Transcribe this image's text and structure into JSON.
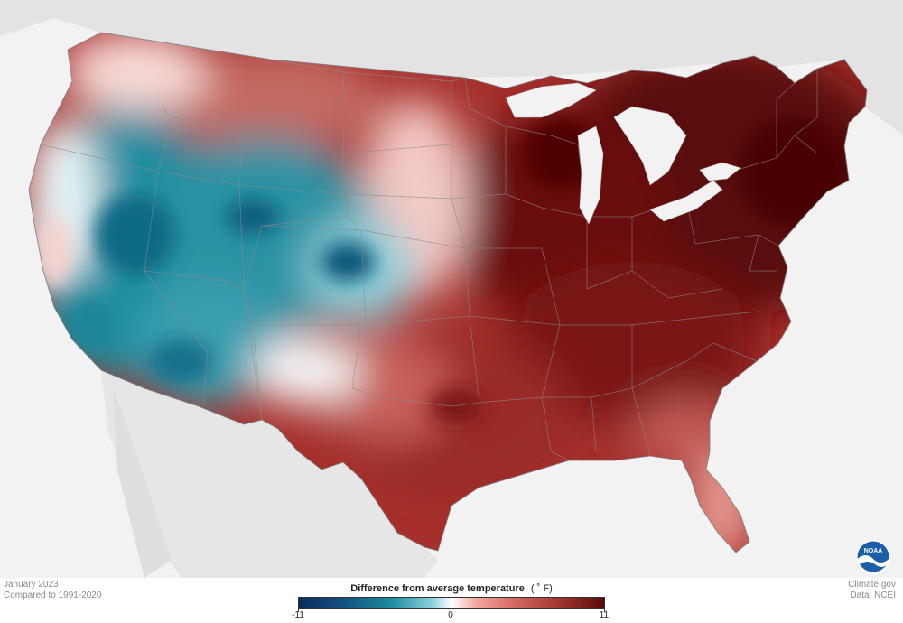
{
  "map": {
    "region": "Contiguous United States",
    "variable": "Difference from average temperature",
    "pattern": [
      {
        "area": "West (CA, NV, AZ, UT, CO, ID, OR, WY)",
        "anomaly": "cooler than average"
      },
      {
        "area": "Central and East",
        "anomaly": "warmer than average"
      },
      {
        "area": "Northeast and Great Lakes",
        "anomaly": "much warmer than average"
      }
    ]
  },
  "legend": {
    "title": "Difference from average temperature",
    "unit": "( ˚ F)",
    "min_label": "-11",
    "mid_label": "0",
    "max_label": "11",
    "scale_min": -11,
    "scale_max": 11,
    "colors": {
      "min": "#0b2a5c",
      "mid": "#ffffff",
      "max": "#5a0b0b"
    }
  },
  "meta": {
    "date": "January 2023",
    "baseline": "Compared to 1991-2020",
    "source_site": "Climate.gov",
    "data_source": "Data: NCEI"
  },
  "logo": {
    "text": "NOAA",
    "icon": "noaa-logo-icon"
  }
}
